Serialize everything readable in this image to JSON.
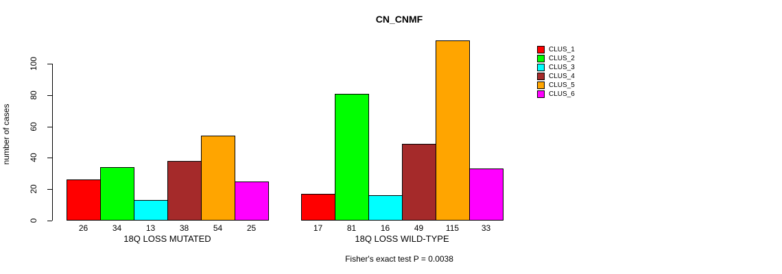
{
  "chart_data": {
    "type": "bar",
    "title": "CN_CNMF",
    "ylabel": "number of cases",
    "caption": "Fisher's exact test P = 0.0038",
    "ylim": [
      0,
      115
    ],
    "yticks": [
      0,
      20,
      40,
      60,
      80,
      100
    ],
    "grid": false,
    "legend_position": "top-right",
    "series": [
      {
        "name": "CLUS_1",
        "color": "#FF0000"
      },
      {
        "name": "CLUS_2",
        "color": "#00FF00"
      },
      {
        "name": "CLUS_3",
        "color": "#00FFFF"
      },
      {
        "name": "CLUS_4",
        "color": "#A52A2A"
      },
      {
        "name": "CLUS_5",
        "color": "#FFA500"
      },
      {
        "name": "CLUS_6",
        "color": "#FF00FF"
      }
    ],
    "groups": [
      {
        "label": "18Q LOSS MUTATED",
        "values": [
          26,
          34,
          13,
          38,
          54,
          25
        ]
      },
      {
        "label": "18Q LOSS WILD-TYPE",
        "values": [
          17,
          81,
          16,
          49,
          115,
          33
        ]
      }
    ]
  }
}
